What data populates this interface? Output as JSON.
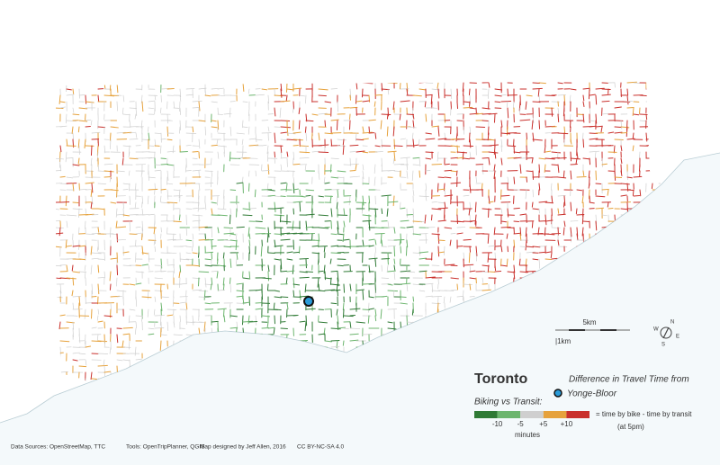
{
  "map": {
    "title": "Toronto",
    "origin_caption": "Difference in Travel Time from",
    "origin": "Yonge-Bloor",
    "subtitle": "Biking vs Transit:",
    "legend": {
      "colors": [
        "#2f7a35",
        "#6cb56e",
        "#cfcfcf",
        "#e6a23c",
        "#c9302c"
      ],
      "ticks": [
        "-10",
        "-5",
        "+5",
        "+10"
      ],
      "unit": "minutes",
      "formula": "= time by bike - time by transit",
      "time_note": "(at 5pm)"
    },
    "scale": {
      "long": "5km",
      "short": "|1km"
    },
    "compass": {
      "north": "N",
      "east": "E",
      "south": "S",
      "west": "W"
    },
    "credits": [
      "Data Sources: OpenStreetMap, TTC",
      "Tools: OpenTripPlanner, QGIS",
      "Map designed by Jeff Allen, 2016",
      "CC BY-NC-SA 4.0"
    ]
  }
}
